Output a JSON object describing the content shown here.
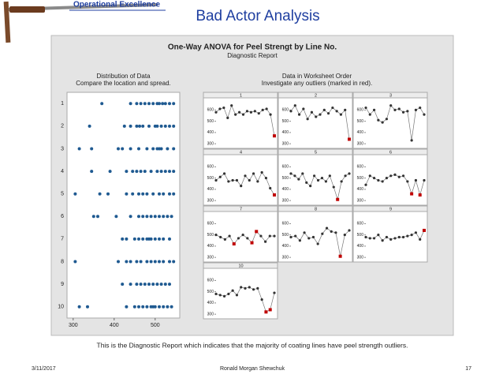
{
  "header": {
    "badge": "Operational Excellence",
    "title": "Bad Actor Analysis"
  },
  "report": {
    "title": "One-Way ANOVA for Peel Strengt by Line No.",
    "subtitle": "Diagnostic Report"
  },
  "chart_data": [
    {
      "type": "dot",
      "title": "Distribution of Data",
      "subtitle": "Compare the location and spread.",
      "color": "#1f5a91",
      "categories": [
        "1",
        "2",
        "3",
        "4",
        "5",
        "6",
        "7",
        "8",
        "9",
        "10"
      ],
      "values": [
        [
          370,
          440,
          455,
          465,
          475,
          485,
          495,
          505,
          510,
          518,
          525,
          535,
          545
        ],
        [
          340,
          425,
          440,
          455,
          462,
          470,
          485,
          500,
          505,
          515,
          525,
          535,
          545
        ],
        [
          315,
          345,
          410,
          420,
          440,
          460,
          480,
          495,
          505,
          510,
          515,
          530,
          545
        ],
        [
          345,
          390,
          430,
          445,
          455,
          465,
          475,
          490,
          505,
          515,
          525,
          535,
          545
        ],
        [
          305,
          365,
          385,
          430,
          445,
          460,
          470,
          480,
          495,
          510,
          520,
          535,
          545
        ],
        [
          350,
          360,
          405,
          440,
          460,
          470,
          480,
          490,
          500,
          510,
          520,
          530,
          540
        ],
        [
          420,
          430,
          450,
          460,
          470,
          480,
          485,
          490,
          500,
          510,
          520,
          535
        ],
        [
          305,
          410,
          430,
          440,
          455,
          465,
          480,
          490,
          500,
          510,
          520,
          535,
          545
        ],
        [
          420,
          440,
          455,
          465,
          475,
          485,
          495,
          505,
          515,
          525,
          535
        ],
        [
          315,
          335,
          430,
          450,
          460,
          470,
          480,
          490,
          495,
          500,
          510,
          520,
          530,
          540
        ]
      ],
      "xlim": [
        285,
        560
      ],
      "xticks": [
        300,
        400,
        500
      ]
    },
    {
      "type": "line",
      "title": "Data in Worksheet Order",
      "subtitle": "Investigate any outliers (marked in red).",
      "color": "#333333",
      "outlier_color": "#c00000",
      "ylim": [
        280,
        680
      ],
      "yticks": [
        300,
        400,
        500,
        600
      ],
      "panels": [
        {
          "name": "1",
          "values": [
            580,
            610,
            620,
            530,
            640,
            560,
            580,
            560,
            590,
            580,
            590,
            570,
            600,
            610,
            560,
            370
          ],
          "outliers": [
            15
          ]
        },
        {
          "name": "2",
          "values": [
            590,
            640,
            560,
            610,
            520,
            580,
            540,
            560,
            600,
            570,
            620,
            590,
            560,
            600,
            340
          ],
          "outliers": [
            14
          ]
        },
        {
          "name": "3",
          "values": [
            620,
            560,
            600,
            510,
            490,
            520,
            640,
            600,
            610,
            580,
            590,
            330,
            600,
            620,
            560
          ],
          "outliers": []
        },
        {
          "name": "4",
          "values": [
            480,
            510,
            540,
            470,
            480,
            480,
            430,
            520,
            480,
            540,
            470,
            550,
            500,
            410,
            350
          ],
          "outliers": [
            14
          ]
        },
        {
          "name": "5",
          "values": [
            540,
            520,
            490,
            540,
            460,
            430,
            520,
            480,
            500,
            470,
            520,
            420,
            310,
            470,
            520,
            540
          ],
          "outliers": [
            12
          ]
        },
        {
          "name": "6",
          "values": [
            440,
            520,
            500,
            480,
            470,
            500,
            520,
            530,
            510,
            520,
            470,
            360,
            480,
            350,
            480
          ],
          "outliers": [
            11,
            13
          ]
        },
        {
          "name": "7",
          "values": [
            500,
            480,
            460,
            490,
            420,
            470,
            500,
            470,
            430,
            530,
            490,
            440,
            490,
            490
          ],
          "outliers": [
            4,
            8,
            9
          ]
        },
        {
          "name": "8",
          "values": [
            480,
            490,
            450,
            520,
            470,
            480,
            420,
            510,
            560,
            530,
            520,
            310,
            500,
            540
          ],
          "outliers": [
            11
          ]
        },
        {
          "name": "9",
          "values": [
            480,
            470,
            470,
            500,
            450,
            480,
            460,
            470,
            480,
            480,
            490,
            500,
            520,
            460,
            540
          ],
          "outliers": [
            14
          ]
        },
        {
          "name": "10",
          "values": [
            480,
            470,
            460,
            480,
            510,
            470,
            540,
            530,
            540,
            520,
            530,
            430,
            320,
            340,
            490
          ],
          "outliers": [
            12,
            13
          ]
        }
      ]
    }
  ],
  "caption": "This is the Diagnostic Report which indicates that the majority of coating lines have peel strength outliers.",
  "footer": {
    "date": "3/11/2017",
    "author": "Ronald Morgan Shewchuk",
    "page": "17"
  }
}
